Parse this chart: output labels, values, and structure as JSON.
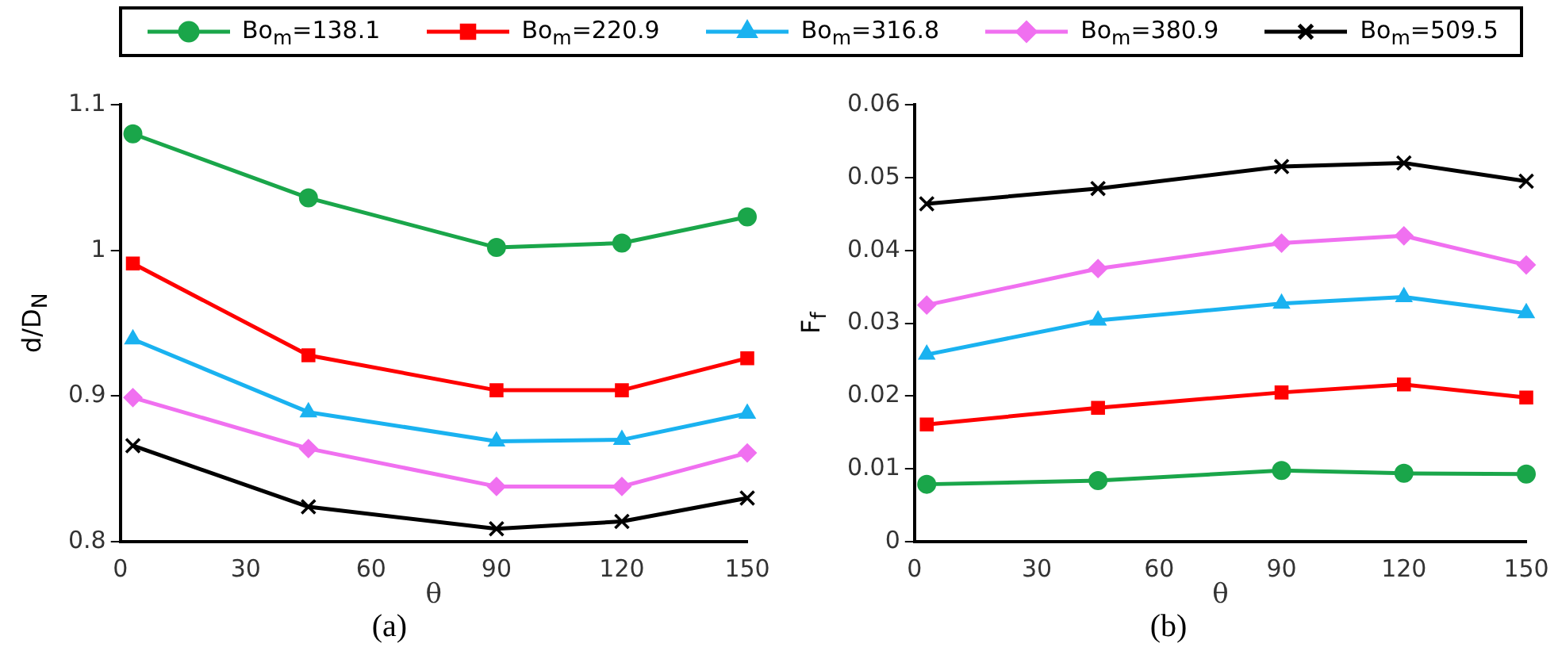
{
  "chart_data": [
    {
      "type": "line",
      "xlabel": "θ",
      "ylabel": "d/D$_{N}$",
      "annotations": [
        "(a)"
      ],
      "legend": "top",
      "grid": false,
      "xlim": [
        0,
        150
      ],
      "xticks": [
        0,
        30,
        60,
        90,
        120,
        150
      ],
      "ylim": [
        0.8,
        1.1
      ],
      "yticks": [
        0.8,
        0.9,
        1,
        1.1
      ],
      "x": [
        3,
        45,
        90,
        120,
        150
      ],
      "series": [
        {
          "name": "Bo$_{m}$=138.1",
          "color": "#1aa64a",
          "marker": "circle",
          "values": [
            1.08,
            1.036,
            1.002,
            1.005,
            1.023
          ]
        },
        {
          "name": "Bo$_{m}$=220.9",
          "color": "#ff0000",
          "marker": "square",
          "values": [
            0.991,
            0.928,
            0.904,
            0.904,
            0.926
          ]
        },
        {
          "name": "Bo$_{m}$=316.8",
          "color": "#1ab2f0",
          "marker": "triangle",
          "values": [
            0.939,
            0.889,
            0.869,
            0.87,
            0.888
          ]
        },
        {
          "name": "Bo$_{m}$=380.9",
          "color": "#f070f0",
          "marker": "diamond",
          "values": [
            0.899,
            0.864,
            0.838,
            0.838,
            0.861
          ]
        },
        {
          "name": "Bo$_{m}$=509.5",
          "color": "#000000",
          "marker": "cross",
          "values": [
            0.866,
            0.824,
            0.809,
            0.814,
            0.83
          ]
        }
      ]
    },
    {
      "type": "line",
      "xlabel": "θ",
      "ylabel": "F$_{f}$",
      "annotations": [
        "(b)"
      ],
      "grid": false,
      "xlim": [
        0,
        150
      ],
      "xticks": [
        0,
        30,
        60,
        90,
        120,
        150
      ],
      "ylim": [
        0,
        0.06
      ],
      "yticks": [
        0,
        0.01,
        0.02,
        0.03,
        0.04,
        0.05,
        0.06
      ],
      "x": [
        3,
        45,
        90,
        120,
        150
      ],
      "series": [
        {
          "color": "#1aa64a",
          "marker": "circle",
          "values": [
            0.0079,
            0.0084,
            0.0098,
            0.0094,
            0.0093
          ]
        },
        {
          "color": "#ff0000",
          "marker": "square",
          "values": [
            0.0161,
            0.0184,
            0.0205,
            0.0216,
            0.0198
          ]
        },
        {
          "color": "#1ab2f0",
          "marker": "triangle",
          "values": [
            0.0257,
            0.0304,
            0.0327,
            0.0336,
            0.0314
          ]
        },
        {
          "color": "#f070f0",
          "marker": "diamond",
          "values": [
            0.0325,
            0.0375,
            0.041,
            0.042,
            0.038
          ]
        },
        {
          "color": "#000000",
          "marker": "cross",
          "values": [
            0.0464,
            0.0485,
            0.0515,
            0.052,
            0.0495
          ]
        }
      ]
    }
  ]
}
